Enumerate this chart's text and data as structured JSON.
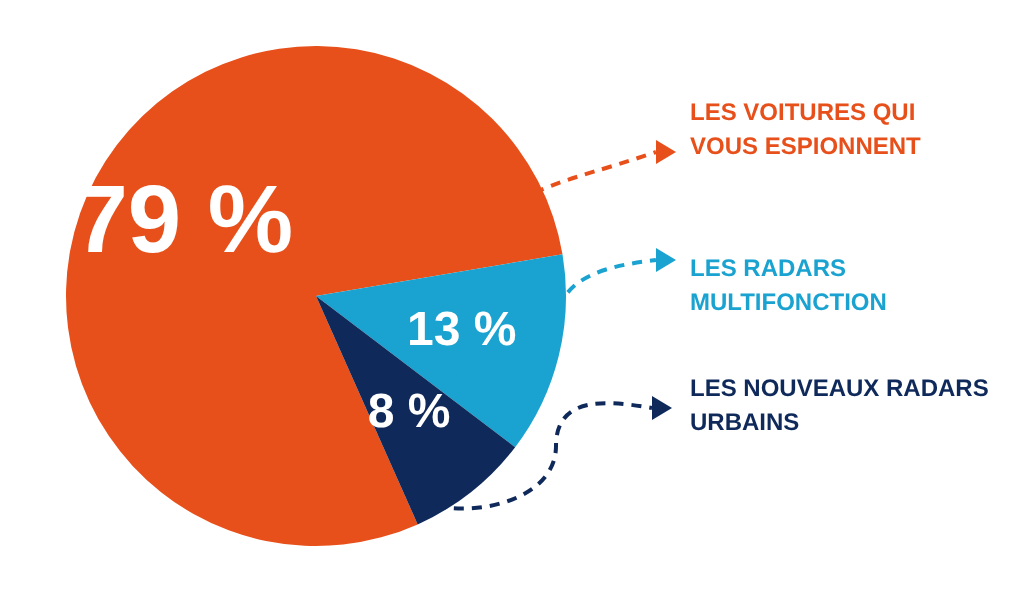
{
  "chart_data": {
    "type": "pie",
    "categories": [
      "LES VOITURES QUI VOUS ESPIONNENT",
      "LES RADARS MULTIFONCTION",
      "LES NOUVEAUX RADARS URBAINS"
    ],
    "values": [
      79,
      13,
      8
    ],
    "colors": [
      "#e8501b",
      "#1aa3d0",
      "#0f2a5a"
    ],
    "value_labels": [
      "79 %",
      "13 %",
      "8 %"
    ],
    "legend": "right"
  }
}
